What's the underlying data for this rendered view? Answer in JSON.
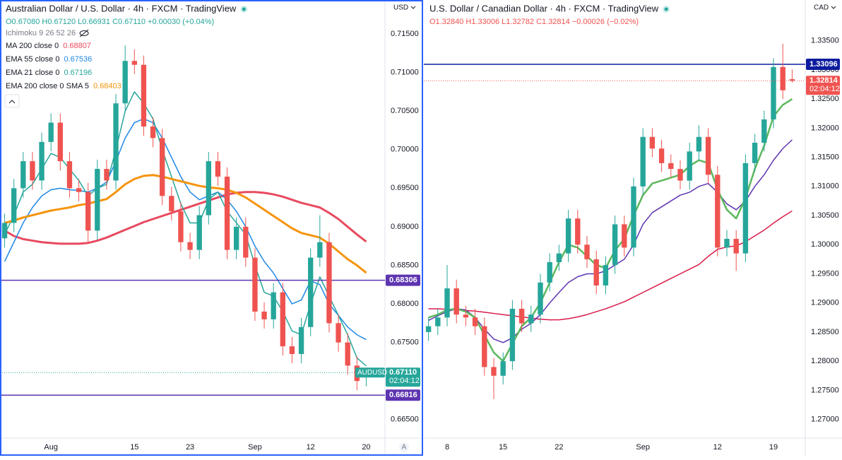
{
  "chart_data": [
    {
      "type": "candlestick",
      "title": "Australian Dollar / U.S. Dollar · 4h · FXCM · TradingView",
      "ohlc": "O0.67080 H0.67120 L0.66931 C0.67110 +0.00030 (+0.04%)",
      "ohlc_color": "#26a69a",
      "indicator": "Ichimoku 9 26 52 26",
      "currency": "USD",
      "auto_button": "A",
      "symbol": "AUDUSD",
      "price_label": "0.67110",
      "countdown": "02:04:12",
      "price_color": "#26a69a",
      "up_color": "#26a69a",
      "down_color": "#ef5350",
      "grid": false,
      "categories": [
        null,
        null,
        null,
        null,
        null,
        "Aug",
        null,
        null,
        null,
        null,
        null,
        null,
        null,
        null,
        "15",
        null,
        null,
        null,
        null,
        null,
        "23",
        null,
        null,
        null,
        null,
        null,
        null,
        "Sep",
        null,
        null,
        null,
        null,
        null,
        "12",
        null,
        null,
        null,
        null,
        null,
        "20"
      ],
      "open": [
        0.6885,
        0.6905,
        0.695,
        0.6985,
        0.696,
        0.701,
        0.7035,
        0.6985,
        0.695,
        0.6945,
        0.6895,
        0.6975,
        0.696,
        0.706,
        0.7115,
        0.711,
        0.703,
        0.7015,
        0.694,
        0.692,
        0.688,
        0.687,
        0.6915,
        0.6985,
        0.6965,
        0.687,
        0.69,
        0.686,
        0.679,
        0.678,
        0.6815,
        0.6745,
        0.6735,
        0.677,
        0.686,
        0.688,
        0.6775,
        0.675,
        0.672,
        0.6708
      ],
      "high": [
        0.6917,
        0.6962,
        0.6997,
        0.6997,
        0.7022,
        0.7047,
        0.7047,
        0.6997,
        0.6962,
        0.6957,
        0.6987,
        0.6987,
        0.7072,
        0.7135,
        0.713,
        0.7122,
        0.7042,
        0.7027,
        0.6952,
        0.6932,
        0.6892,
        0.6927,
        0.6997,
        0.6997,
        0.6977,
        0.6912,
        0.6912,
        0.6872,
        0.6802,
        0.6827,
        0.6827,
        0.6757,
        0.6782,
        0.6872,
        0.6915,
        0.6892,
        0.6787,
        0.6762,
        0.6732,
        0.6712
      ],
      "low": [
        0.6873,
        0.6893,
        0.6938,
        0.6948,
        0.6948,
        0.6998,
        0.6973,
        0.6938,
        0.6933,
        0.6878,
        0.6883,
        0.6948,
        0.6948,
        0.7048,
        0.7098,
        0.7018,
        0.7003,
        0.6928,
        0.6908,
        0.6868,
        0.6858,
        0.6858,
        0.6903,
        0.6953,
        0.6858,
        0.6858,
        0.6848,
        0.6778,
        0.6768,
        0.6768,
        0.6733,
        0.6723,
        0.6723,
        0.6758,
        0.6848,
        0.6763,
        0.6738,
        0.6708,
        0.6688,
        0.66931
      ],
      "close": [
        0.6905,
        0.695,
        0.6985,
        0.696,
        0.701,
        0.7035,
        0.6985,
        0.695,
        0.6945,
        0.6895,
        0.6975,
        0.696,
        0.706,
        0.7115,
        0.711,
        0.703,
        0.7015,
        0.694,
        0.692,
        0.688,
        0.687,
        0.6915,
        0.6985,
        0.6965,
        0.687,
        0.69,
        0.686,
        0.679,
        0.678,
        0.6815,
        0.6745,
        0.6735,
        0.677,
        0.686,
        0.688,
        0.6775,
        0.675,
        0.672,
        0.67,
        0.6711
      ],
      "series": [
        {
          "name": "MA 200 close 0",
          "value_label": "0.68807",
          "color": "#e84a5f",
          "width": 3,
          "values": [
            0.6895,
            0.6888,
            0.6884,
            0.6882,
            0.688,
            0.6879,
            0.6878,
            0.6878,
            0.6878,
            0.6879,
            0.6882,
            0.6886,
            0.6891,
            0.6896,
            0.6901,
            0.6906,
            0.691,
            0.6914,
            0.6918,
            0.6922,
            0.6926,
            0.693,
            0.6934,
            0.6938,
            0.6942,
            0.6944,
            0.6945,
            0.6945,
            0.6944,
            0.6942,
            0.6939,
            0.6935,
            0.6931,
            0.6928,
            0.6925,
            0.6918,
            0.691,
            0.69,
            0.689,
            0.68807
          ]
        },
        {
          "name": "EMA 55 close 0",
          "value_label": "0.67536",
          "color": "#1e88e5",
          "width": 1.5,
          "values": [
            0.6855,
            0.688,
            0.6905,
            0.6925,
            0.694,
            0.6948,
            0.695,
            0.6948,
            0.6947,
            0.6945,
            0.695,
            0.6958,
            0.6985,
            0.7015,
            0.7035,
            0.704,
            0.7035,
            0.7015,
            0.699,
            0.6965,
            0.6945,
            0.6935,
            0.694,
            0.6945,
            0.6935,
            0.692,
            0.69,
            0.6875,
            0.6855,
            0.684,
            0.682,
            0.68,
            0.6805,
            0.683,
            0.6825,
            0.68,
            0.6785,
            0.677,
            0.676,
            0.67536
          ]
        },
        {
          "name": "EMA 21 close 0",
          "value_label": "0.67196",
          "color": "#26a69a",
          "width": 1.5,
          "values": [
            0.689,
            0.6915,
            0.6945,
            0.6955,
            0.6975,
            0.6995,
            0.699,
            0.6975,
            0.696,
            0.694,
            0.695,
            0.6955,
            0.7,
            0.705,
            0.7075,
            0.706,
            0.704,
            0.7,
            0.6965,
            0.693,
            0.6905,
            0.6905,
            0.6935,
            0.6945,
            0.692,
            0.6905,
            0.689,
            0.685,
            0.6815,
            0.681,
            0.679,
            0.6765,
            0.676,
            0.68,
            0.6835,
            0.681,
            0.6785,
            0.676,
            0.673,
            0.67196
          ]
        },
        {
          "name": "EMA 200 close 0 SMA 5",
          "value_label": "0.68403",
          "color": "#f5940c",
          "width": 3,
          "values": [
            0.6905,
            0.6908,
            0.6912,
            0.6915,
            0.6918,
            0.6921,
            0.6923,
            0.6925,
            0.6928,
            0.693,
            0.6933,
            0.6936,
            0.6945,
            0.6955,
            0.6962,
            0.6966,
            0.6967,
            0.6965,
            0.6962,
            0.6959,
            0.6956,
            0.6953,
            0.6951,
            0.695,
            0.6948,
            0.6944,
            0.6938,
            0.693,
            0.6922,
            0.6914,
            0.6906,
            0.6898,
            0.6892,
            0.6889,
            0.6886,
            0.6878,
            0.6868,
            0.6858,
            0.685,
            0.68403
          ]
        }
      ],
      "hlines": [
        {
          "value": 0.68306,
          "label": "0.68306",
          "color": "#5e35b1"
        },
        {
          "value": 0.66816,
          "label": "0.66816",
          "color": "#5e35b1"
        }
      ],
      "ylim": [
        0.6626,
        0.7194
      ],
      "yticks": [
        {
          "value": 0.665,
          "label": "0.66500"
        },
        {
          "value": 0.67,
          "label": "0.67000"
        },
        {
          "value": 0.675,
          "label": "0.67500"
        },
        {
          "value": 0.68,
          "label": "0.68000"
        },
        {
          "value": 0.685,
          "label": "0.68500"
        },
        {
          "value": 0.69,
          "label": "0.69000"
        },
        {
          "value": 0.695,
          "label": "0.69500"
        },
        {
          "value": 0.7,
          "label": "0.70000"
        },
        {
          "value": 0.705,
          "label": "0.70500"
        },
        {
          "value": 0.71,
          "label": "0.71000"
        },
        {
          "value": 0.715,
          "label": "0.71500"
        }
      ]
    },
    {
      "type": "candlestick",
      "title": "U.S. Dollar / Canadian Dollar · 4h · FXCM · TradingView",
      "ohlc": "O1.32840 H1.33006 L1.32782 C1.32814 −0.00026 (−0.02%)",
      "ohlc_color": "#ef5350",
      "currency": "CAD",
      "price_label": "1.32814",
      "countdown": "02:04:12",
      "price_color": "#ef5350",
      "up_color": "#26a69a",
      "down_color": "#ef5350",
      "grid": false,
      "categories": [
        null,
        null,
        "8",
        null,
        null,
        null,
        null,
        null,
        "15",
        null,
        null,
        null,
        null,
        null,
        "22",
        null,
        null,
        null,
        null,
        null,
        null,
        null,
        null,
        "Sep",
        null,
        null,
        null,
        null,
        null,
        null,
        null,
        "12",
        null,
        null,
        null,
        null,
        null,
        "19",
        null,
        null
      ],
      "open": [
        1.285,
        1.286,
        1.2875,
        1.2925,
        1.288,
        1.2875,
        1.286,
        1.279,
        1.2775,
        1.28,
        1.289,
        1.2865,
        1.288,
        1.2935,
        1.297,
        1.2985,
        1.3045,
        1.3,
        1.2975,
        1.293,
        1.2965,
        1.3035,
        1.2995,
        1.31,
        1.3185,
        1.3165,
        1.314,
        1.313,
        1.311,
        1.316,
        1.3185,
        1.312,
        1.2995,
        1.301,
        1.2985,
        1.314,
        1.3175,
        1.3215,
        1.3305,
        1.3284
      ],
      "high": [
        1.2875,
        1.289,
        1.2965,
        1.294,
        1.2895,
        1.289,
        1.2875,
        1.2805,
        1.2815,
        1.2905,
        1.2905,
        1.2895,
        1.295,
        1.2985,
        1.3,
        1.306,
        1.306,
        1.3015,
        1.299,
        1.298,
        1.305,
        1.305,
        1.3115,
        1.32,
        1.32,
        1.318,
        1.3155,
        1.3145,
        1.3175,
        1.3205,
        1.32,
        1.3135,
        1.3025,
        1.3025,
        1.3155,
        1.319,
        1.323,
        1.332,
        1.3345,
        1.33006
      ],
      "low": [
        1.2835,
        1.2845,
        1.286,
        1.2865,
        1.286,
        1.2845,
        1.2775,
        1.2735,
        1.276,
        1.2785,
        1.285,
        1.285,
        1.2865,
        1.292,
        1.2955,
        1.297,
        1.2985,
        1.296,
        1.2915,
        1.2915,
        1.295,
        1.298,
        1.298,
        1.3085,
        1.315,
        1.3125,
        1.3115,
        1.3095,
        1.3095,
        1.3145,
        1.3105,
        1.298,
        1.298,
        1.2955,
        1.297,
        1.3125,
        1.316,
        1.32,
        1.325,
        1.32782
      ],
      "close": [
        1.286,
        1.2875,
        1.2925,
        1.288,
        1.2875,
        1.286,
        1.279,
        1.2775,
        1.28,
        1.289,
        1.2865,
        1.288,
        1.2935,
        1.297,
        1.2985,
        1.3045,
        1.3,
        1.2975,
        1.293,
        1.2965,
        1.3035,
        1.2995,
        1.31,
        1.3185,
        1.3165,
        1.314,
        1.313,
        1.311,
        1.316,
        1.3185,
        1.312,
        1.2995,
        1.301,
        1.2985,
        1.314,
        1.3175,
        1.3215,
        1.3305,
        1.3265,
        1.32814
      ],
      "series": [
        {
          "color": "#d81b4a",
          "width": 1.5,
          "values": [
            1.289,
            1.289,
            1.2889,
            1.2888,
            1.2887,
            1.2886,
            1.2884,
            1.2882,
            1.288,
            1.2878,
            1.2876,
            1.2874,
            1.2872,
            1.2871,
            1.2871,
            1.2873,
            1.2876,
            1.288,
            1.2885,
            1.289,
            1.2896,
            1.2902,
            1.291,
            1.2918,
            1.2926,
            1.2934,
            1.2942,
            1.295,
            1.2958,
            1.2966,
            1.298,
            1.2992,
            1.2996,
            1.2998,
            1.3005,
            1.3015,
            1.3025,
            1.3037,
            1.3048,
            1.3058
          ]
        },
        {
          "color": "#5e35b1",
          "width": 1.5,
          "values": [
            1.287,
            1.2878,
            1.2885,
            1.289,
            1.2888,
            1.2875,
            1.2855,
            1.2838,
            1.2832,
            1.284,
            1.2855,
            1.2865,
            1.288,
            1.29,
            1.2918,
            1.2935,
            1.2945,
            1.295,
            1.295,
            1.2955,
            1.2965,
            1.2975,
            1.3,
            1.3035,
            1.3055,
            1.3065,
            1.3075,
            1.3085,
            1.309,
            1.31,
            1.3105,
            1.309,
            1.307,
            1.306,
            1.3075,
            1.31,
            1.312,
            1.3145,
            1.3165,
            1.318
          ]
        },
        {
          "color": "#5cb85c",
          "width": 2.5,
          "values": [
            1.2875,
            1.288,
            1.2888,
            1.289,
            1.2885,
            1.2875,
            1.2845,
            1.2815,
            1.28,
            1.283,
            1.286,
            1.2875,
            1.29,
            1.2935,
            1.297,
            1.3,
            1.2995,
            1.298,
            1.2965,
            1.296,
            1.299,
            1.301,
            1.305,
            1.3085,
            1.3105,
            1.311,
            1.3115,
            1.312,
            1.3135,
            1.3145,
            1.314,
            1.3095,
            1.306,
            1.3045,
            1.308,
            1.313,
            1.317,
            1.322,
            1.324,
            1.325
          ]
        }
      ],
      "hlines": [
        {
          "value": 1.33096,
          "label": "1.33096",
          "color": "#0d1c9e"
        }
      ],
      "ylim": [
        1.2668,
        1.342
      ],
      "yticks": [
        {
          "value": 1.27,
          "label": "1.27000"
        },
        {
          "value": 1.275,
          "label": "1.27500"
        },
        {
          "value": 1.28,
          "label": "1.28000"
        },
        {
          "value": 1.285,
          "label": "1.28500"
        },
        {
          "value": 1.29,
          "label": "1.29000"
        },
        {
          "value": 1.295,
          "label": "1.29500"
        },
        {
          "value": 1.3,
          "label": "1.30000"
        },
        {
          "value": 1.305,
          "label": "1.30500"
        },
        {
          "value": 1.31,
          "label": "1.31000"
        },
        {
          "value": 1.315,
          "label": "1.31500"
        },
        {
          "value": 1.32,
          "label": "1.32000"
        },
        {
          "value": 1.325,
          "label": "1.32500"
        },
        {
          "value": 1.33,
          "label": "1.33000"
        },
        {
          "value": 1.335,
          "label": "1.33500"
        }
      ]
    }
  ]
}
